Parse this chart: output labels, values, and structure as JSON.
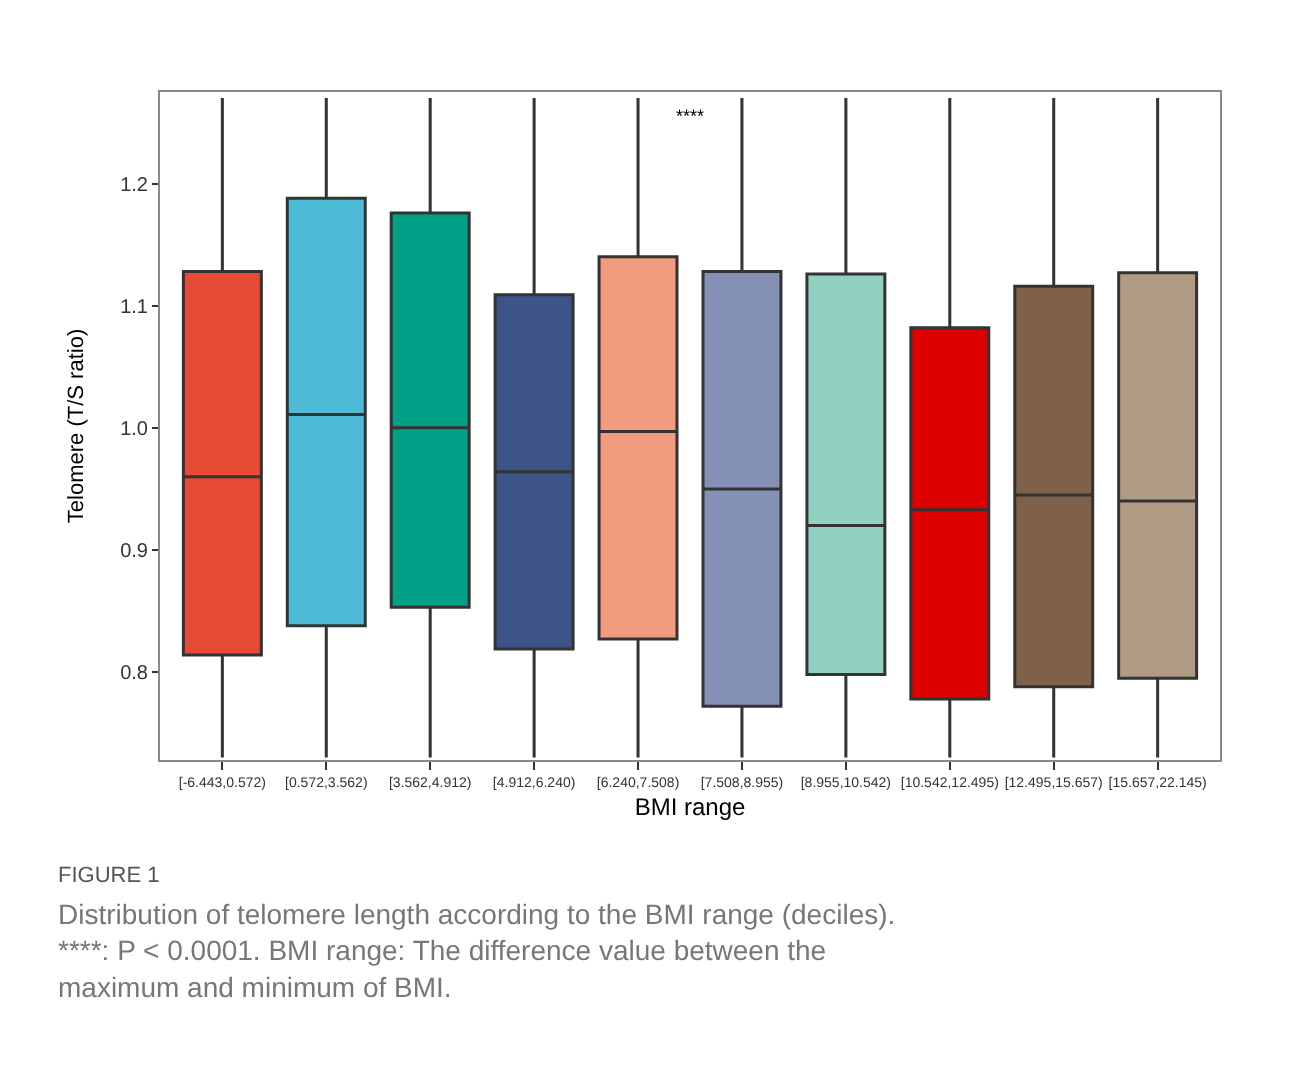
{
  "chart_data": {
    "type": "box",
    "xlabel": "BMI range",
    "ylabel": "Telomere (T/S ratio)",
    "categories": [
      "[-6.443,0.572)",
      "[0.572,3.562)",
      "[3.562,4.912)",
      "[4.912,6.240)",
      "[6.240,7.508)",
      "[7.508,8.955)",
      "[8.955,10.542)",
      "[10.542,12.495)",
      "[12.495,15.657)",
      "[15.657,22.145)"
    ],
    "colors": [
      "#e64b35",
      "#4dbbd5",
      "#00a087",
      "#3c5488",
      "#f39b7f",
      "#8491b4",
      "#91d1c2",
      "#dc0000",
      "#7e6148",
      "#b09c85"
    ],
    "boxes": [
      {
        "low": 0.73,
        "q1": 0.814,
        "median": 0.96,
        "q3": 1.128,
        "high": 1.27
      },
      {
        "low": 0.73,
        "q1": 0.838,
        "median": 1.011,
        "q3": 1.188,
        "high": 1.27
      },
      {
        "low": 0.73,
        "q1": 0.853,
        "median": 1.0,
        "q3": 1.176,
        "high": 1.27
      },
      {
        "low": 0.73,
        "q1": 0.819,
        "median": 0.964,
        "q3": 1.109,
        "high": 1.27
      },
      {
        "low": 0.73,
        "q1": 0.827,
        "median": 0.997,
        "q3": 1.14,
        "high": 1.27
      },
      {
        "low": 0.73,
        "q1": 0.772,
        "median": 0.95,
        "q3": 1.128,
        "high": 1.27
      },
      {
        "low": 0.73,
        "q1": 0.798,
        "median": 0.92,
        "q3": 1.126,
        "high": 1.27
      },
      {
        "low": 0.73,
        "q1": 0.778,
        "median": 0.933,
        "q3": 1.082,
        "high": 1.27
      },
      {
        "low": 0.73,
        "q1": 0.788,
        "median": 0.945,
        "q3": 1.116,
        "high": 1.27
      },
      {
        "low": 0.73,
        "q1": 0.795,
        "median": 0.94,
        "q3": 1.127,
        "high": 1.27
      }
    ],
    "ylim": [
      0.728,
      1.275
    ],
    "yticks": [
      0.8,
      0.9,
      {
        "value": 1.0,
        "label": "1.0"
      },
      1.1,
      1.2
    ],
    "legend": false,
    "annotations": [
      "****",
      "FIGURE 1",
      "Distribution of telomere length according to the BMI range (deciles).\n****: P < 0.0001. BMI range: The difference value between the\nmaximum and minimum of BMI."
    ]
  }
}
